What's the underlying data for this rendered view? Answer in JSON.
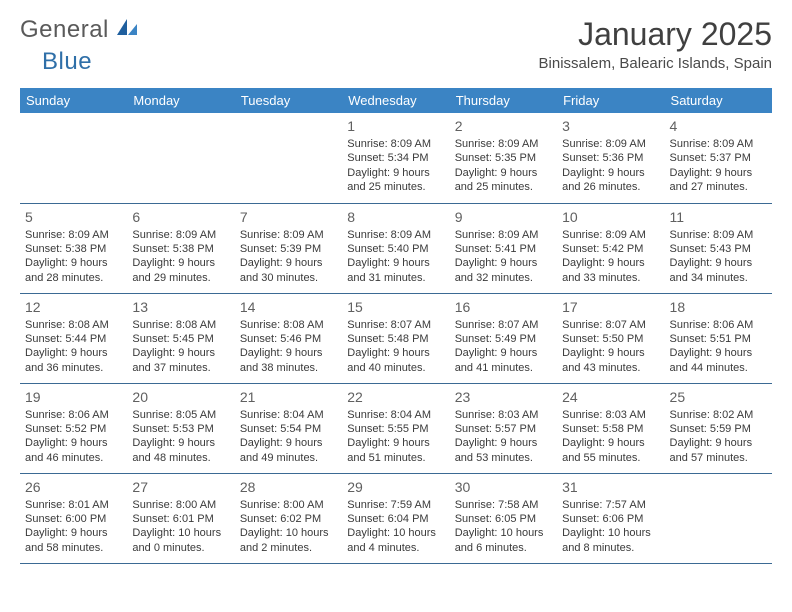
{
  "brand": {
    "part1": "General",
    "part2": "Blue"
  },
  "title": "January 2025",
  "location": "Binissalem, Balearic Islands, Spain",
  "colors": {
    "header_bg": "#3b84c4",
    "header_fg": "#ffffff",
    "row_border": "#3b6a94",
    "text": "#3a3a3a",
    "daynum": "#606060",
    "brand_gray": "#5a5a5a",
    "brand_blue": "#2f6fa8",
    "page_bg": "#ffffff"
  },
  "weekdays": [
    "Sunday",
    "Monday",
    "Tuesday",
    "Wednesday",
    "Thursday",
    "Friday",
    "Saturday"
  ],
  "label_sunrise": "Sunrise: ",
  "label_sunset": "Sunset: ",
  "label_daylight": "Daylight: ",
  "weeks": [
    [
      null,
      null,
      null,
      {
        "day": "1",
        "sunrise": "8:09 AM",
        "sunset": "5:34 PM",
        "dl1": "9 hours",
        "dl2": "and 25 minutes."
      },
      {
        "day": "2",
        "sunrise": "8:09 AM",
        "sunset": "5:35 PM",
        "dl1": "9 hours",
        "dl2": "and 25 minutes."
      },
      {
        "day": "3",
        "sunrise": "8:09 AM",
        "sunset": "5:36 PM",
        "dl1": "9 hours",
        "dl2": "and 26 minutes."
      },
      {
        "day": "4",
        "sunrise": "8:09 AM",
        "sunset": "5:37 PM",
        "dl1": "9 hours",
        "dl2": "and 27 minutes."
      }
    ],
    [
      {
        "day": "5",
        "sunrise": "8:09 AM",
        "sunset": "5:38 PM",
        "dl1": "9 hours",
        "dl2": "and 28 minutes."
      },
      {
        "day": "6",
        "sunrise": "8:09 AM",
        "sunset": "5:38 PM",
        "dl1": "9 hours",
        "dl2": "and 29 minutes."
      },
      {
        "day": "7",
        "sunrise": "8:09 AM",
        "sunset": "5:39 PM",
        "dl1": "9 hours",
        "dl2": "and 30 minutes."
      },
      {
        "day": "8",
        "sunrise": "8:09 AM",
        "sunset": "5:40 PM",
        "dl1": "9 hours",
        "dl2": "and 31 minutes."
      },
      {
        "day": "9",
        "sunrise": "8:09 AM",
        "sunset": "5:41 PM",
        "dl1": "9 hours",
        "dl2": "and 32 minutes."
      },
      {
        "day": "10",
        "sunrise": "8:09 AM",
        "sunset": "5:42 PM",
        "dl1": "9 hours",
        "dl2": "and 33 minutes."
      },
      {
        "day": "11",
        "sunrise": "8:09 AM",
        "sunset": "5:43 PM",
        "dl1": "9 hours",
        "dl2": "and 34 minutes."
      }
    ],
    [
      {
        "day": "12",
        "sunrise": "8:08 AM",
        "sunset": "5:44 PM",
        "dl1": "9 hours",
        "dl2": "and 36 minutes."
      },
      {
        "day": "13",
        "sunrise": "8:08 AM",
        "sunset": "5:45 PM",
        "dl1": "9 hours",
        "dl2": "and 37 minutes."
      },
      {
        "day": "14",
        "sunrise": "8:08 AM",
        "sunset": "5:46 PM",
        "dl1": "9 hours",
        "dl2": "and 38 minutes."
      },
      {
        "day": "15",
        "sunrise": "8:07 AM",
        "sunset": "5:48 PM",
        "dl1": "9 hours",
        "dl2": "and 40 minutes."
      },
      {
        "day": "16",
        "sunrise": "8:07 AM",
        "sunset": "5:49 PM",
        "dl1": "9 hours",
        "dl2": "and 41 minutes."
      },
      {
        "day": "17",
        "sunrise": "8:07 AM",
        "sunset": "5:50 PM",
        "dl1": "9 hours",
        "dl2": "and 43 minutes."
      },
      {
        "day": "18",
        "sunrise": "8:06 AM",
        "sunset": "5:51 PM",
        "dl1": "9 hours",
        "dl2": "and 44 minutes."
      }
    ],
    [
      {
        "day": "19",
        "sunrise": "8:06 AM",
        "sunset": "5:52 PM",
        "dl1": "9 hours",
        "dl2": "and 46 minutes."
      },
      {
        "day": "20",
        "sunrise": "8:05 AM",
        "sunset": "5:53 PM",
        "dl1": "9 hours",
        "dl2": "and 48 minutes."
      },
      {
        "day": "21",
        "sunrise": "8:04 AM",
        "sunset": "5:54 PM",
        "dl1": "9 hours",
        "dl2": "and 49 minutes."
      },
      {
        "day": "22",
        "sunrise": "8:04 AM",
        "sunset": "5:55 PM",
        "dl1": "9 hours",
        "dl2": "and 51 minutes."
      },
      {
        "day": "23",
        "sunrise": "8:03 AM",
        "sunset": "5:57 PM",
        "dl1": "9 hours",
        "dl2": "and 53 minutes."
      },
      {
        "day": "24",
        "sunrise": "8:03 AM",
        "sunset": "5:58 PM",
        "dl1": "9 hours",
        "dl2": "and 55 minutes."
      },
      {
        "day": "25",
        "sunrise": "8:02 AM",
        "sunset": "5:59 PM",
        "dl1": "9 hours",
        "dl2": "and 57 minutes."
      }
    ],
    [
      {
        "day": "26",
        "sunrise": "8:01 AM",
        "sunset": "6:00 PM",
        "dl1": "9 hours",
        "dl2": "and 58 minutes."
      },
      {
        "day": "27",
        "sunrise": "8:00 AM",
        "sunset": "6:01 PM",
        "dl1": "10 hours",
        "dl2": "and 0 minutes."
      },
      {
        "day": "28",
        "sunrise": "8:00 AM",
        "sunset": "6:02 PM",
        "dl1": "10 hours",
        "dl2": "and 2 minutes."
      },
      {
        "day": "29",
        "sunrise": "7:59 AM",
        "sunset": "6:04 PM",
        "dl1": "10 hours",
        "dl2": "and 4 minutes."
      },
      {
        "day": "30",
        "sunrise": "7:58 AM",
        "sunset": "6:05 PM",
        "dl1": "10 hours",
        "dl2": "and 6 minutes."
      },
      {
        "day": "31",
        "sunrise": "7:57 AM",
        "sunset": "6:06 PM",
        "dl1": "10 hours",
        "dl2": "and 8 minutes."
      },
      null
    ]
  ]
}
